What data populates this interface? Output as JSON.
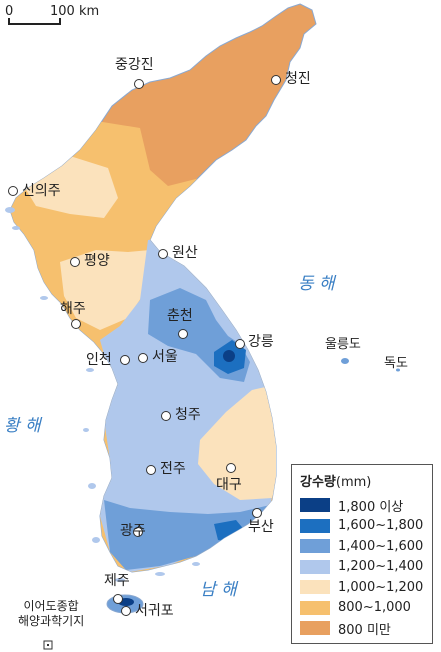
{
  "scale": {
    "zero": "0",
    "distance": "100 km"
  },
  "seas": {
    "east": "동 해",
    "west": "황 해",
    "south": "남 해"
  },
  "cities": [
    {
      "id": "junggangjin",
      "name": "중강진"
    },
    {
      "id": "chongjin",
      "name": "청진"
    },
    {
      "id": "sinuiju",
      "name": "신의주"
    },
    {
      "id": "pyongyang",
      "name": "평양"
    },
    {
      "id": "wonsan",
      "name": "원산"
    },
    {
      "id": "haeju",
      "name": "해주"
    },
    {
      "id": "chuncheon",
      "name": "춘천"
    },
    {
      "id": "gangneung",
      "name": "강릉"
    },
    {
      "id": "incheon",
      "name": "인천"
    },
    {
      "id": "seoul",
      "name": "서울"
    },
    {
      "id": "cheongju",
      "name": "청주"
    },
    {
      "id": "jeonju",
      "name": "전주"
    },
    {
      "id": "daegu",
      "name": "대구"
    },
    {
      "id": "busan",
      "name": "부산"
    },
    {
      "id": "gwangju",
      "name": "광주"
    },
    {
      "id": "jeju",
      "name": "제주"
    },
    {
      "id": "seogwipo",
      "name": "서귀포"
    }
  ],
  "islands": {
    "ulleungdo": "울릉도",
    "dokdo": "독도"
  },
  "ieodo": {
    "line1": "이어도종합",
    "line2": "해양과학기지"
  },
  "legend": {
    "title": "강수량",
    "unit": "(mm)",
    "items": [
      {
        "label": "1,800 이상",
        "color": "#0b3f86"
      },
      {
        "label": "1,600~1,800",
        "color": "#1c6fc0"
      },
      {
        "label": "1,400~1,600",
        "color": "#6f9fd8"
      },
      {
        "label": "1,200~1,400",
        "color": "#b0c8ec"
      },
      {
        "label": "1,000~1,200",
        "color": "#fbe2bc"
      },
      {
        "label": "800~1,000",
        "color": "#f6c06e"
      },
      {
        "label": "800 미만",
        "color": "#e8a060"
      }
    ]
  }
}
